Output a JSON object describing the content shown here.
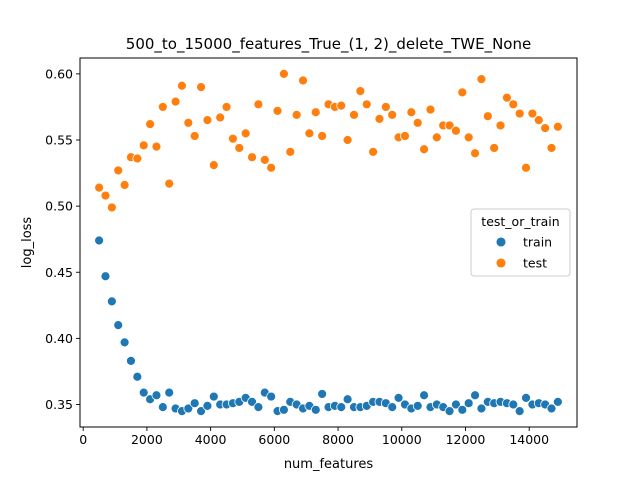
{
  "chart_data": {
    "type": "scatter",
    "title": "500_to_15000_features_True_(1, 2)_delete_TWE_None",
    "xlabel": "num_features",
    "ylabel": "log_loss",
    "xlim": [
      -100,
      15500
    ],
    "ylim": [
      0.333,
      0.612
    ],
    "x_ticks": [
      0,
      2000,
      4000,
      6000,
      8000,
      10000,
      12000,
      14000
    ],
    "y_ticks": [
      0.35,
      0.4,
      0.45,
      0.5,
      0.55,
      0.6
    ],
    "x_tick_labels": [
      "0",
      "2000",
      "4000",
      "6000",
      "8000",
      "10000",
      "12000",
      "14000"
    ],
    "y_tick_labels": [
      "0.35",
      "0.40",
      "0.45",
      "0.50",
      "0.55",
      "0.60"
    ],
    "legend": {
      "title": "test_or_train",
      "placement": "center-right",
      "entries": [
        "train",
        "test"
      ]
    },
    "grid": false,
    "series": [
      {
        "name": "train",
        "color": "#1f77b4",
        "x": [
          500,
          700,
          900,
          1100,
          1300,
          1500,
          1700,
          1900,
          2100,
          2300,
          2500,
          2700,
          2900,
          3100,
          3300,
          3500,
          3700,
          3900,
          4100,
          4300,
          4500,
          4700,
          4900,
          5100,
          5300,
          5500,
          5700,
          5900,
          6100,
          6300,
          6500,
          6700,
          6900,
          7100,
          7300,
          7500,
          7700,
          7900,
          8100,
          8300,
          8500,
          8700,
          8900,
          9100,
          9300,
          9500,
          9700,
          9900,
          10100,
          10300,
          10500,
          10700,
          10900,
          11100,
          11300,
          11500,
          11700,
          11900,
          12100,
          12300,
          12500,
          12700,
          12900,
          13100,
          13300,
          13500,
          13700,
          13900,
          14100,
          14300,
          14500,
          14700,
          14900
        ],
        "y": [
          0.474,
          0.447,
          0.428,
          0.41,
          0.397,
          0.383,
          0.371,
          0.359,
          0.354,
          0.357,
          0.348,
          0.359,
          0.347,
          0.345,
          0.347,
          0.351,
          0.345,
          0.349,
          0.356,
          0.35,
          0.35,
          0.351,
          0.352,
          0.355,
          0.352,
          0.348,
          0.359,
          0.356,
          0.345,
          0.346,
          0.352,
          0.35,
          0.347,
          0.349,
          0.346,
          0.358,
          0.348,
          0.349,
          0.348,
          0.354,
          0.348,
          0.348,
          0.349,
          0.352,
          0.352,
          0.351,
          0.348,
          0.355,
          0.35,
          0.347,
          0.349,
          0.357,
          0.348,
          0.35,
          0.348,
          0.345,
          0.35,
          0.346,
          0.351,
          0.357,
          0.347,
          0.352,
          0.351,
          0.352,
          0.351,
          0.35,
          0.345,
          0.355,
          0.35,
          0.351,
          0.35,
          0.347,
          0.352
        ]
      },
      {
        "name": "test",
        "color": "#ff7f0e",
        "x": [
          500,
          700,
          900,
          1100,
          1300,
          1500,
          1700,
          1900,
          2100,
          2300,
          2500,
          2700,
          2900,
          3100,
          3300,
          3500,
          3700,
          3900,
          4100,
          4300,
          4500,
          4700,
          4900,
          5100,
          5300,
          5500,
          5700,
          5900,
          6100,
          6300,
          6500,
          6700,
          6900,
          7100,
          7300,
          7500,
          7700,
          7900,
          8100,
          8300,
          8500,
          8700,
          8900,
          9100,
          9300,
          9500,
          9700,
          9900,
          10100,
          10300,
          10500,
          10700,
          10900,
          11100,
          11300,
          11500,
          11700,
          11900,
          12100,
          12300,
          12500,
          12700,
          12900,
          13100,
          13300,
          13500,
          13700,
          13900,
          14100,
          14300,
          14500,
          14700,
          14900
        ],
        "y": [
          0.514,
          0.508,
          0.499,
          0.527,
          0.516,
          0.537,
          0.536,
          0.546,
          0.562,
          0.545,
          0.575,
          0.517,
          0.579,
          0.591,
          0.563,
          0.553,
          0.59,
          0.565,
          0.531,
          0.567,
          0.575,
          0.551,
          0.544,
          0.555,
          0.537,
          0.577,
          0.535,
          0.529,
          0.572,
          0.6,
          0.541,
          0.569,
          0.595,
          0.555,
          0.571,
          0.553,
          0.577,
          0.575,
          0.576,
          0.55,
          0.569,
          0.587,
          0.577,
          0.541,
          0.566,
          0.575,
          0.569,
          0.552,
          0.553,
          0.571,
          0.563,
          0.543,
          0.573,
          0.552,
          0.561,
          0.561,
          0.557,
          0.586,
          0.552,
          0.54,
          0.596,
          0.568,
          0.544,
          0.561,
          0.582,
          0.577,
          0.57,
          0.529,
          0.57,
          0.565,
          0.559,
          0.544,
          0.56
        ]
      }
    ]
  }
}
